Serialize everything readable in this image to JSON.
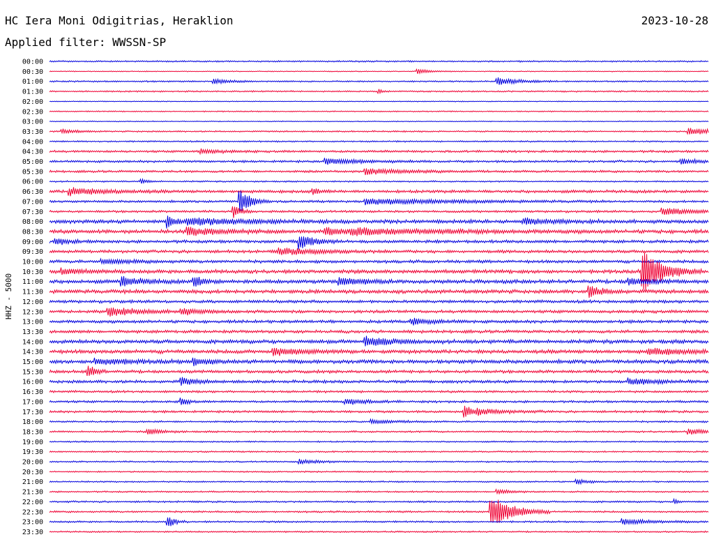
{
  "header": {
    "station": "HC Iera Moni Odigitrias, Heraklion",
    "date": "2023-10-28",
    "filter": "Applied filter: WWSSN-SP"
  },
  "chart_data": {
    "type": "line",
    "title": "HC Iera Moni Odigitrias, Heraklion",
    "ylabel": "HHZ - 5000",
    "row_labels": [
      "00:00",
      "00:30",
      "01:00",
      "01:30",
      "02:00",
      "02:30",
      "03:00",
      "03:30",
      "04:00",
      "04:30",
      "05:00",
      "05:30",
      "06:00",
      "06:30",
      "07:00",
      "07:30",
      "08:00",
      "08:30",
      "09:00",
      "09:30",
      "10:00",
      "10:30",
      "11:00",
      "11:30",
      "12:00",
      "12:30",
      "13:00",
      "13:30",
      "14:00",
      "14:30",
      "15:00",
      "15:30",
      "16:00",
      "16:30",
      "17:00",
      "17:30",
      "18:00",
      "18:30",
      "19:00",
      "19:30",
      "20:00",
      "20:30",
      "21:00",
      "21:30",
      "22:00",
      "22:30",
      "23:00",
      "23:30"
    ],
    "colors": {
      "even_rows": "#0000dd",
      "odd_rows": "#ee0033"
    },
    "row_noise_amplitude": [
      1,
      0.6,
      1,
      1,
      0.6,
      0.8,
      0.6,
      1,
      1,
      1.5,
      1.5,
      1.5,
      1,
      2,
      1.5,
      1.5,
      2.5,
      2.5,
      2,
      2,
      2,
      2.5,
      2.5,
      2.5,
      2,
      2,
      2,
      2,
      2.5,
      2.5,
      2.5,
      2,
      2,
      1.5,
      1.5,
      1.5,
      1.2,
      1.2,
      1,
      1,
      1,
      1,
      1,
      1,
      1.2,
      1.2,
      1.2,
      1
    ],
    "events": [
      {
        "row": 1,
        "x": 0.56,
        "amp": 3,
        "dur": 0.02
      },
      {
        "row": 2,
        "x": 0.25,
        "amp": 4,
        "dur": 0.02
      },
      {
        "row": 2,
        "x": 0.68,
        "amp": 5,
        "dur": 0.03
      },
      {
        "row": 3,
        "x": 0.5,
        "amp": 3,
        "dur": 0.005
      },
      {
        "row": 7,
        "x": 0.02,
        "amp": 3,
        "dur": 0.02
      },
      {
        "row": 7,
        "x": 0.97,
        "amp": 5,
        "dur": 0.04
      },
      {
        "row": 9,
        "x": 0.23,
        "amp": 3,
        "dur": 0.03
      },
      {
        "row": 10,
        "x": 0.42,
        "amp": 4,
        "dur": 0.05
      },
      {
        "row": 10,
        "x": 0.96,
        "amp": 3,
        "dur": 0.03
      },
      {
        "row": 11,
        "x": 0.48,
        "amp": 4,
        "dur": 0.06
      },
      {
        "row": 12,
        "x": 0.14,
        "amp": 3,
        "dur": 0.01
      },
      {
        "row": 13,
        "x": 0.03,
        "amp": 5,
        "dur": 0.05
      },
      {
        "row": 13,
        "x": 0.4,
        "amp": 4,
        "dur": 0.01
      },
      {
        "row": 14,
        "x": 0.29,
        "amp": 16,
        "dur": 0.015
      },
      {
        "row": 14,
        "x": 0.48,
        "amp": 4,
        "dur": 0.12
      },
      {
        "row": 15,
        "x": 0.28,
        "amp": 8,
        "dur": 0.01
      },
      {
        "row": 15,
        "x": 0.93,
        "amp": 5,
        "dur": 0.04
      },
      {
        "row": 16,
        "x": 0.18,
        "amp": 9,
        "dur": 0.01
      },
      {
        "row": 16,
        "x": 0.21,
        "amp": 5,
        "dur": 0.08
      },
      {
        "row": 16,
        "x": 0.72,
        "amp": 4,
        "dur": 0.04
      },
      {
        "row": 17,
        "x": 0.21,
        "amp": 5,
        "dur": 0.05
      },
      {
        "row": 17,
        "x": 0.42,
        "amp": 6,
        "dur": 0.02
      },
      {
        "row": 17,
        "x": 0.46,
        "amp": 4,
        "dur": 0.12
      },
      {
        "row": 18,
        "x": 0.01,
        "amp": 4,
        "dur": 0.02
      },
      {
        "row": 18,
        "x": 0.38,
        "amp": 10,
        "dur": 0.02
      },
      {
        "row": 19,
        "x": 0.35,
        "amp": 4,
        "dur": 0.06
      },
      {
        "row": 20,
        "x": 0.08,
        "amp": 3,
        "dur": 0.04
      },
      {
        "row": 21,
        "x": 0.9,
        "amp": 30,
        "dur": 0.03
      },
      {
        "row": 21,
        "x": 0.02,
        "amp": 4,
        "dur": 0.03
      },
      {
        "row": 22,
        "x": 0.11,
        "amp": 6,
        "dur": 0.03
      },
      {
        "row": 22,
        "x": 0.22,
        "amp": 7,
        "dur": 0.015
      },
      {
        "row": 22,
        "x": 0.44,
        "amp": 5,
        "dur": 0.03
      },
      {
        "row": 22,
        "x": 0.88,
        "amp": 4,
        "dur": 0.03
      },
      {
        "row": 23,
        "x": 0.82,
        "amp": 7,
        "dur": 0.02
      },
      {
        "row": 25,
        "x": 0.09,
        "amp": 6,
        "dur": 0.04
      },
      {
        "row": 25,
        "x": 0.2,
        "amp": 4,
        "dur": 0.03
      },
      {
        "row": 26,
        "x": 0.55,
        "amp": 4,
        "dur": 0.03
      },
      {
        "row": 28,
        "x": 0.48,
        "amp": 6,
        "dur": 0.04
      },
      {
        "row": 29,
        "x": 0.34,
        "amp": 5,
        "dur": 0.04
      },
      {
        "row": 29,
        "x": 0.91,
        "amp": 4,
        "dur": 0.05
      },
      {
        "row": 30,
        "x": 0.07,
        "amp": 4,
        "dur": 0.05
      },
      {
        "row": 30,
        "x": 0.22,
        "amp": 4,
        "dur": 0.03
      },
      {
        "row": 31,
        "x": 0.06,
        "amp": 9,
        "dur": 0.01
      },
      {
        "row": 32,
        "x": 0.2,
        "amp": 5,
        "dur": 0.02
      },
      {
        "row": 32,
        "x": 0.88,
        "amp": 4,
        "dur": 0.04
      },
      {
        "row": 34,
        "x": 0.2,
        "amp": 5,
        "dur": 0.01
      },
      {
        "row": 34,
        "x": 0.45,
        "amp": 4,
        "dur": 0.03
      },
      {
        "row": 35,
        "x": 0.63,
        "amp": 10,
        "dur": 0.01
      },
      {
        "row": 35,
        "x": 0.65,
        "amp": 4,
        "dur": 0.04
      },
      {
        "row": 36,
        "x": 0.49,
        "amp": 3,
        "dur": 0.03
      },
      {
        "row": 37,
        "x": 0.15,
        "amp": 4,
        "dur": 0.02
      },
      {
        "row": 37,
        "x": 0.97,
        "amp": 4,
        "dur": 0.03
      },
      {
        "row": 40,
        "x": 0.38,
        "amp": 3,
        "dur": 0.03
      },
      {
        "row": 42,
        "x": 0.8,
        "amp": 3,
        "dur": 0.02
      },
      {
        "row": 43,
        "x": 0.68,
        "amp": 3,
        "dur": 0.02
      },
      {
        "row": 44,
        "x": 0.95,
        "amp": 3,
        "dur": 0.005
      },
      {
        "row": 45,
        "x": 0.67,
        "amp": 24,
        "dur": 0.03
      },
      {
        "row": 46,
        "x": 0.18,
        "amp": 8,
        "dur": 0.01
      },
      {
        "row": 46,
        "x": 0.87,
        "amp": 4,
        "dur": 0.04
      }
    ]
  }
}
